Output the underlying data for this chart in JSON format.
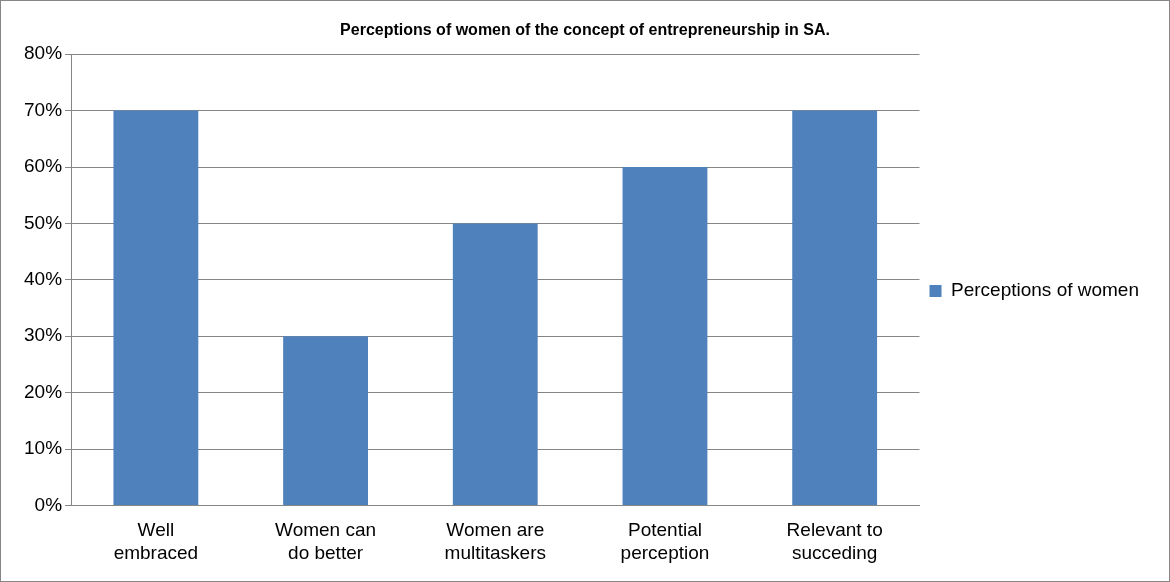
{
  "chart_data": {
    "type": "bar",
    "title": "Perceptions of women of the concept of entrepreneurship in SA.",
    "categories": [
      "Well embraced",
      "Women can do better",
      "Women are multitaskers",
      "Potential perception",
      "Relevant to succeding"
    ],
    "series": [
      {
        "name": "Perceptions of women",
        "color": "#4f81bd",
        "values": [
          70,
          30,
          50,
          60,
          70
        ]
      }
    ],
    "ylim": [
      0,
      80
    ],
    "yticks": [
      {
        "value": 0,
        "label": "0%"
      },
      {
        "value": 10,
        "label": "10%"
      },
      {
        "value": 20,
        "label": "20%"
      },
      {
        "value": 30,
        "label": "30%"
      },
      {
        "value": 40,
        "label": "40%"
      },
      {
        "value": 50,
        "label": "50%"
      },
      {
        "value": 60,
        "label": "60%"
      },
      {
        "value": 70,
        "label": "70%"
      },
      {
        "value": 80,
        "label": "80%"
      }
    ],
    "grid": "y",
    "legend": "right"
  }
}
